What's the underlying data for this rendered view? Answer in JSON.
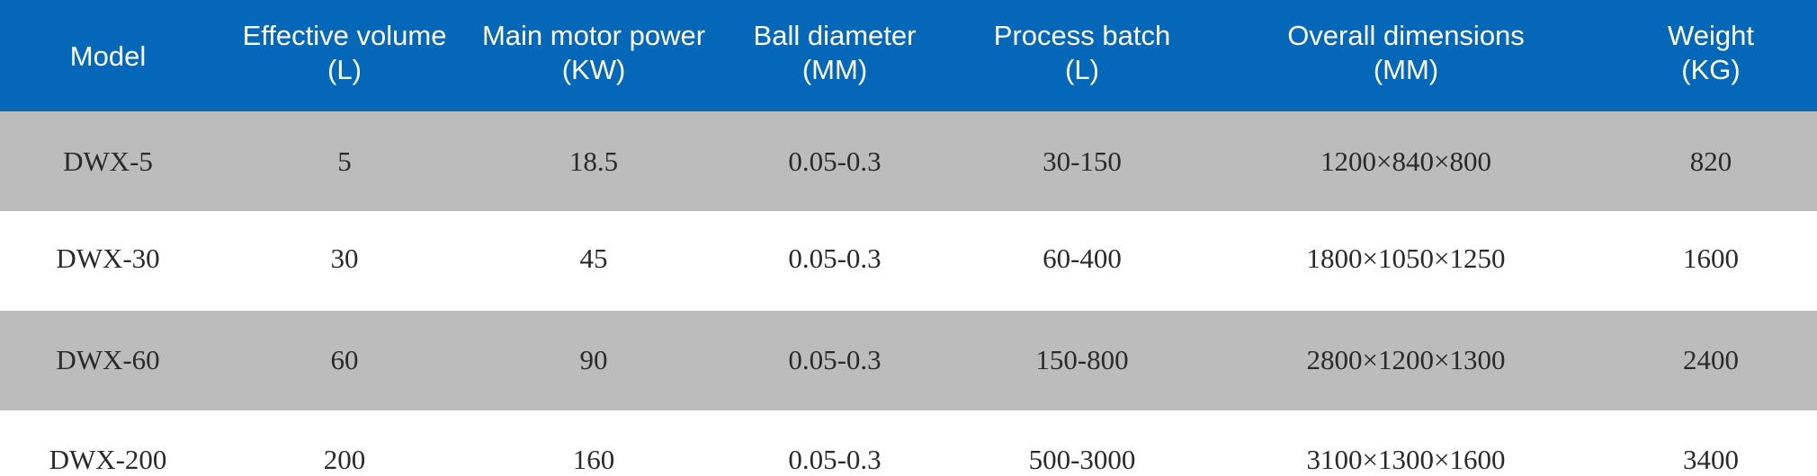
{
  "table": {
    "headers": [
      {
        "line1": "Model",
        "line2": ""
      },
      {
        "line1": "Effective volume",
        "line2": "(L)"
      },
      {
        "line1": "Main motor power",
        "line2": "(KW)"
      },
      {
        "line1": "Ball diameter",
        "line2": "(MM)"
      },
      {
        "line1": "Process batch",
        "line2": "(L)"
      },
      {
        "line1": "Overall dimensions",
        "line2": "(MM)"
      },
      {
        "line1": "Weight",
        "line2": "(KG)"
      }
    ],
    "rows": [
      [
        "DWX-5",
        "5",
        "18.5",
        "0.05-0.3",
        "30-150",
        "1200×840×800",
        "820"
      ],
      [
        "DWX-30",
        "30",
        "45",
        "0.05-0.3",
        "60-400",
        "1800×1050×1250",
        "1600"
      ],
      [
        "DWX-60",
        "60",
        "90",
        "0.05-0.3",
        "150-800",
        "2800×1200×1300",
        "2400"
      ],
      [
        "DWX-200",
        "200",
        "160",
        "0.05-0.3",
        "500-3000",
        "3100×1300×1600",
        "3400"
      ]
    ],
    "colors": {
      "header_bg": "#0567b8",
      "header_text": "#ffffff",
      "row_shaded": "#bcbcbc",
      "row_plain": "#ffffff",
      "body_text": "#2a2a2a"
    }
  }
}
